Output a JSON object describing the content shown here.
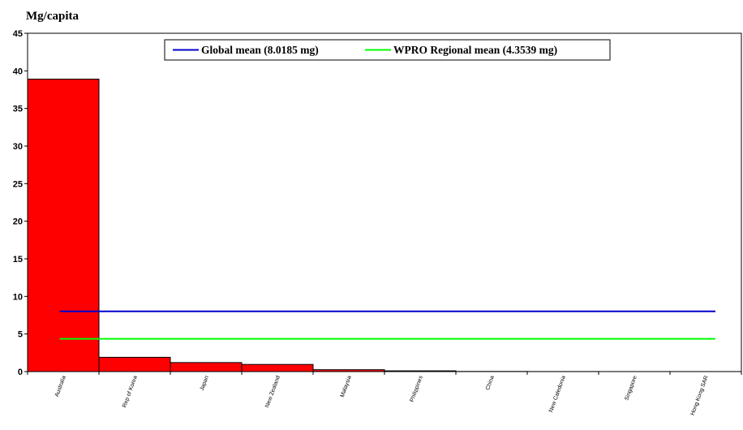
{
  "chart_data": {
    "type": "bar",
    "ylabel": "Mg/capita",
    "ylim": [
      0,
      45
    ],
    "yticks": [
      0,
      5,
      10,
      15,
      20,
      25,
      30,
      35,
      40,
      45
    ],
    "grid": false,
    "legend_position": "top",
    "categories": [
      "Australia",
      "Rep of Korea",
      "Japan",
      "New Zealand",
      "Malaysia",
      "Philippines",
      "China",
      "New Caledonia",
      "Singapore",
      "Hong Kong SAR"
    ],
    "values": [
      38.9,
      1.9,
      1.2,
      0.95,
      0.25,
      0.1,
      0.02,
      0.01,
      0.005,
      0.005
    ],
    "bar_color": "#ff0000",
    "reference_lines": [
      {
        "name": "Global mean (8.0185 mg)",
        "value": 8.0185,
        "color": "#0000cc"
      },
      {
        "name": "WPRO  Regional mean (4.3539 mg)",
        "value": 4.3539,
        "color": "#00ff00"
      }
    ]
  }
}
